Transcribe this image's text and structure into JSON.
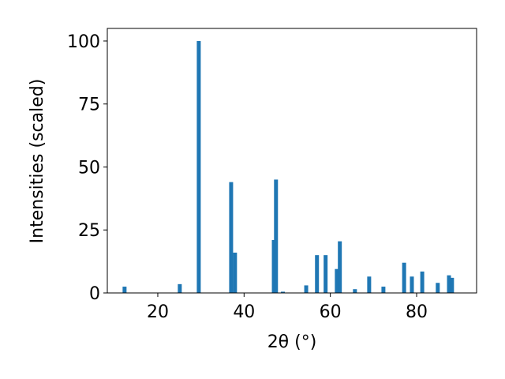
{
  "chart_data": {
    "type": "bar",
    "x_label": "2θ (°)",
    "y_label": "Intensities (scaled)",
    "x": [
      12.3,
      25.1,
      29.5,
      37.0,
      37.9,
      46.9,
      47.4,
      49.0,
      54.4,
      56.9,
      58.9,
      61.5,
      62.2,
      65.7,
      69.0,
      72.3,
      77.1,
      78.9,
      81.3,
      84.9,
      87.5,
      88.2
    ],
    "values": [
      2.5,
      3.5,
      100,
      44,
      16,
      21,
      45,
      0.5,
      3,
      15,
      15,
      9.5,
      20.5,
      1.5,
      6.5,
      2.5,
      12,
      6.5,
      8.5,
      4,
      7,
      6
    ],
    "color": "#1f77b4",
    "xlim": [
      8.3,
      93.9
    ],
    "xticks": [
      20,
      40,
      60,
      80
    ],
    "ylim": [
      0,
      105
    ],
    "yticks": [
      0,
      25,
      50,
      75,
      100
    ]
  }
}
